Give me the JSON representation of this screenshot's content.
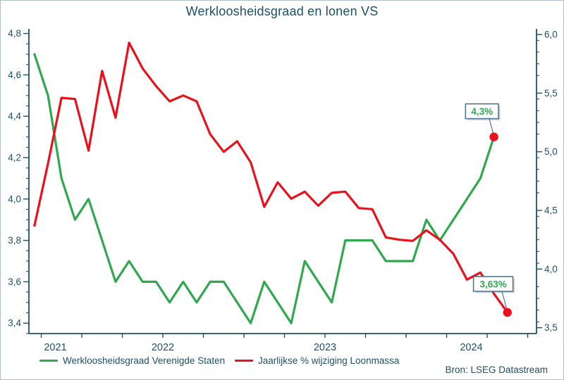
{
  "title": "Werkloosheidsgraad en lonen VS",
  "source": "Bron: LSEG Datastream",
  "colors": {
    "text": "#1F5064",
    "axis": "#1F5064",
    "green": "#2fa84f",
    "red": "#e8111c",
    "frame_border": "#aebdd0",
    "annotation_border": "#44708C",
    "annotation_text": "#2fa84f",
    "callout_line": "#3a5a70",
    "endpoint_dot": "#e8111c"
  },
  "chart_data": {
    "type": "line",
    "title": "Werkloosheidsgraad en lonen VS",
    "x_start": "2021-09",
    "x_unit": "month",
    "grid": "off",
    "legend_position": "bottom",
    "x_year_labels": [
      "2021",
      "2022",
      "2023",
      "2024"
    ],
    "series": [
      {
        "name": "Werkloosheidsgraad Verenigde Staten",
        "axis": "left",
        "color": "#2fa84f",
        "start": "2021-09",
        "end": "2024-07",
        "values": [
          4.7,
          4.5,
          4.1,
          3.9,
          4.0,
          3.8,
          3.6,
          3.7,
          3.6,
          3.6,
          3.5,
          3.6,
          3.5,
          3.6,
          3.6,
          3.5,
          3.4,
          3.6,
          3.5,
          3.4,
          3.7,
          3.6,
          3.5,
          3.8,
          3.8,
          3.8,
          3.7,
          3.7,
          3.7,
          3.9,
          3.8,
          3.9,
          4.0,
          4.1,
          4.3
        ]
      },
      {
        "name": "Jaarlijkse % wijziging Loonmassa",
        "axis": "right",
        "color": "#e8111c",
        "start": "2021-09",
        "end": "2024-08",
        "values": [
          4.37,
          4.9,
          5.46,
          5.45,
          5.01,
          5.69,
          5.29,
          5.93,
          5.71,
          5.56,
          5.43,
          5.48,
          5.43,
          5.15,
          5.0,
          5.09,
          4.91,
          4.53,
          4.74,
          4.6,
          4.66,
          4.54,
          4.65,
          4.66,
          4.52,
          4.51,
          4.27,
          4.25,
          4.24,
          4.33,
          4.25,
          4.13,
          3.91,
          3.97,
          3.79,
          3.63
        ]
      }
    ],
    "left_axis": {
      "ticks": [
        4.8,
        4.6,
        4.4,
        4.2,
        4.0,
        3.8,
        3.6,
        3.4
      ],
      "minor_step": 0.05,
      "range_top": 4.8,
      "range_bottom": 3.35,
      "decimal_separator": ","
    },
    "right_axis": {
      "ticks": [
        6.0,
        5.5,
        5.0,
        4.5,
        4.0,
        3.5
      ],
      "minor_step": 0.1,
      "range_top": 6.0,
      "range_bottom": 3.45,
      "decimal_separator": ","
    },
    "annotations": [
      {
        "text": "4,3%",
        "series": 0,
        "attaches_to": "last-point"
      },
      {
        "text": "3,63%",
        "series": 1,
        "attaches_to": "last-point"
      }
    ]
  }
}
